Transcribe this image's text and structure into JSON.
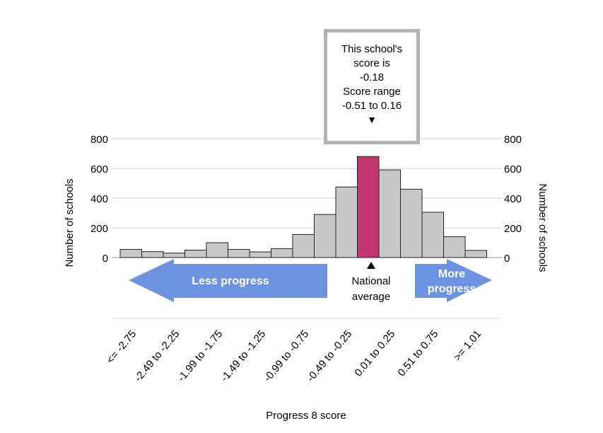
{
  "callout": {
    "line1": "This school's",
    "line2": "score is",
    "score": "-0.18",
    "line3": "Score range",
    "range": "-0.51 to 0.16"
  },
  "arrows": {
    "less": "Less progress",
    "more_line1": "More",
    "more_line2": "progress",
    "national_line1": "National",
    "national_line2": "average"
  },
  "colors": {
    "bar": "#c8c8c8",
    "highlight": "#c2366f",
    "arrow": "#6d93e0",
    "grid": "#cfcfcf",
    "callout_border": "#b3b3b3"
  },
  "chart_data": {
    "type": "bar",
    "xlabel": "Progress 8 score",
    "ylabel": "Number of schools",
    "ylim": [
      0,
      800
    ],
    "yticks": [
      0,
      200,
      400,
      600,
      800
    ],
    "grid": true,
    "tick_labels": [
      "<= -2.75",
      "-2.49 to -2.25",
      "-1.99 to -1.75",
      "-1.49 to -1.25",
      "-0.99 to -0.75",
      "-0.49 to -0.25",
      "0.01 to 0.25",
      "0.51 to 0.75",
      ">= 1.01"
    ],
    "values": [
      55,
      40,
      30,
      50,
      100,
      55,
      38,
      60,
      155,
      290,
      475,
      680,
      590,
      460,
      305,
      140,
      48
    ],
    "highlight_index": 11,
    "national_average_index": 11
  }
}
